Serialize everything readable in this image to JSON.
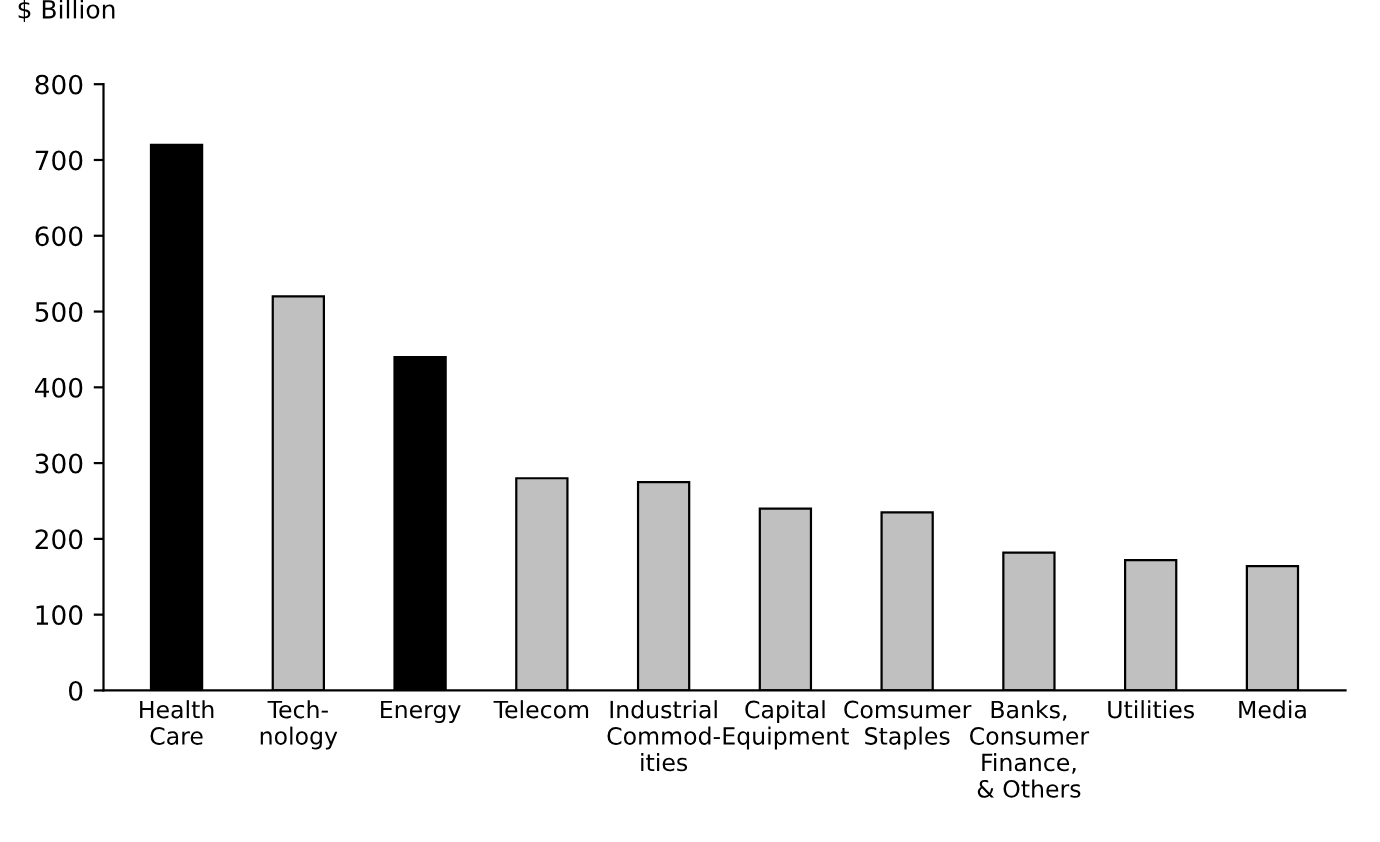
{
  "chart_data": {
    "type": "bar",
    "ylabel": "$ Billion",
    "categories": [
      "Health\nCare",
      "Tech-\nnology",
      "Energy",
      "Telecom",
      "Industrial\nCommod-\nities",
      "Capital\nEquipment",
      "Comsumer\nStaples",
      "Banks,\nConsumer\nFinance,\n& Others",
      "Utilities",
      "Media"
    ],
    "values": [
      720,
      520,
      440,
      280,
      275,
      240,
      235,
      182,
      172,
      164
    ],
    "colors": [
      "#000000",
      "#c0c0c0",
      "#000000",
      "#c0c0c0",
      "#c0c0c0",
      "#c0c0c0",
      "#c0c0c0",
      "#c0c0c0",
      "#c0c0c0",
      "#c0c0c0"
    ],
    "ylim": [
      0,
      800
    ],
    "yticks": [
      0,
      100,
      200,
      300,
      400,
      500,
      600,
      700,
      800
    ],
    "grid": false
  }
}
